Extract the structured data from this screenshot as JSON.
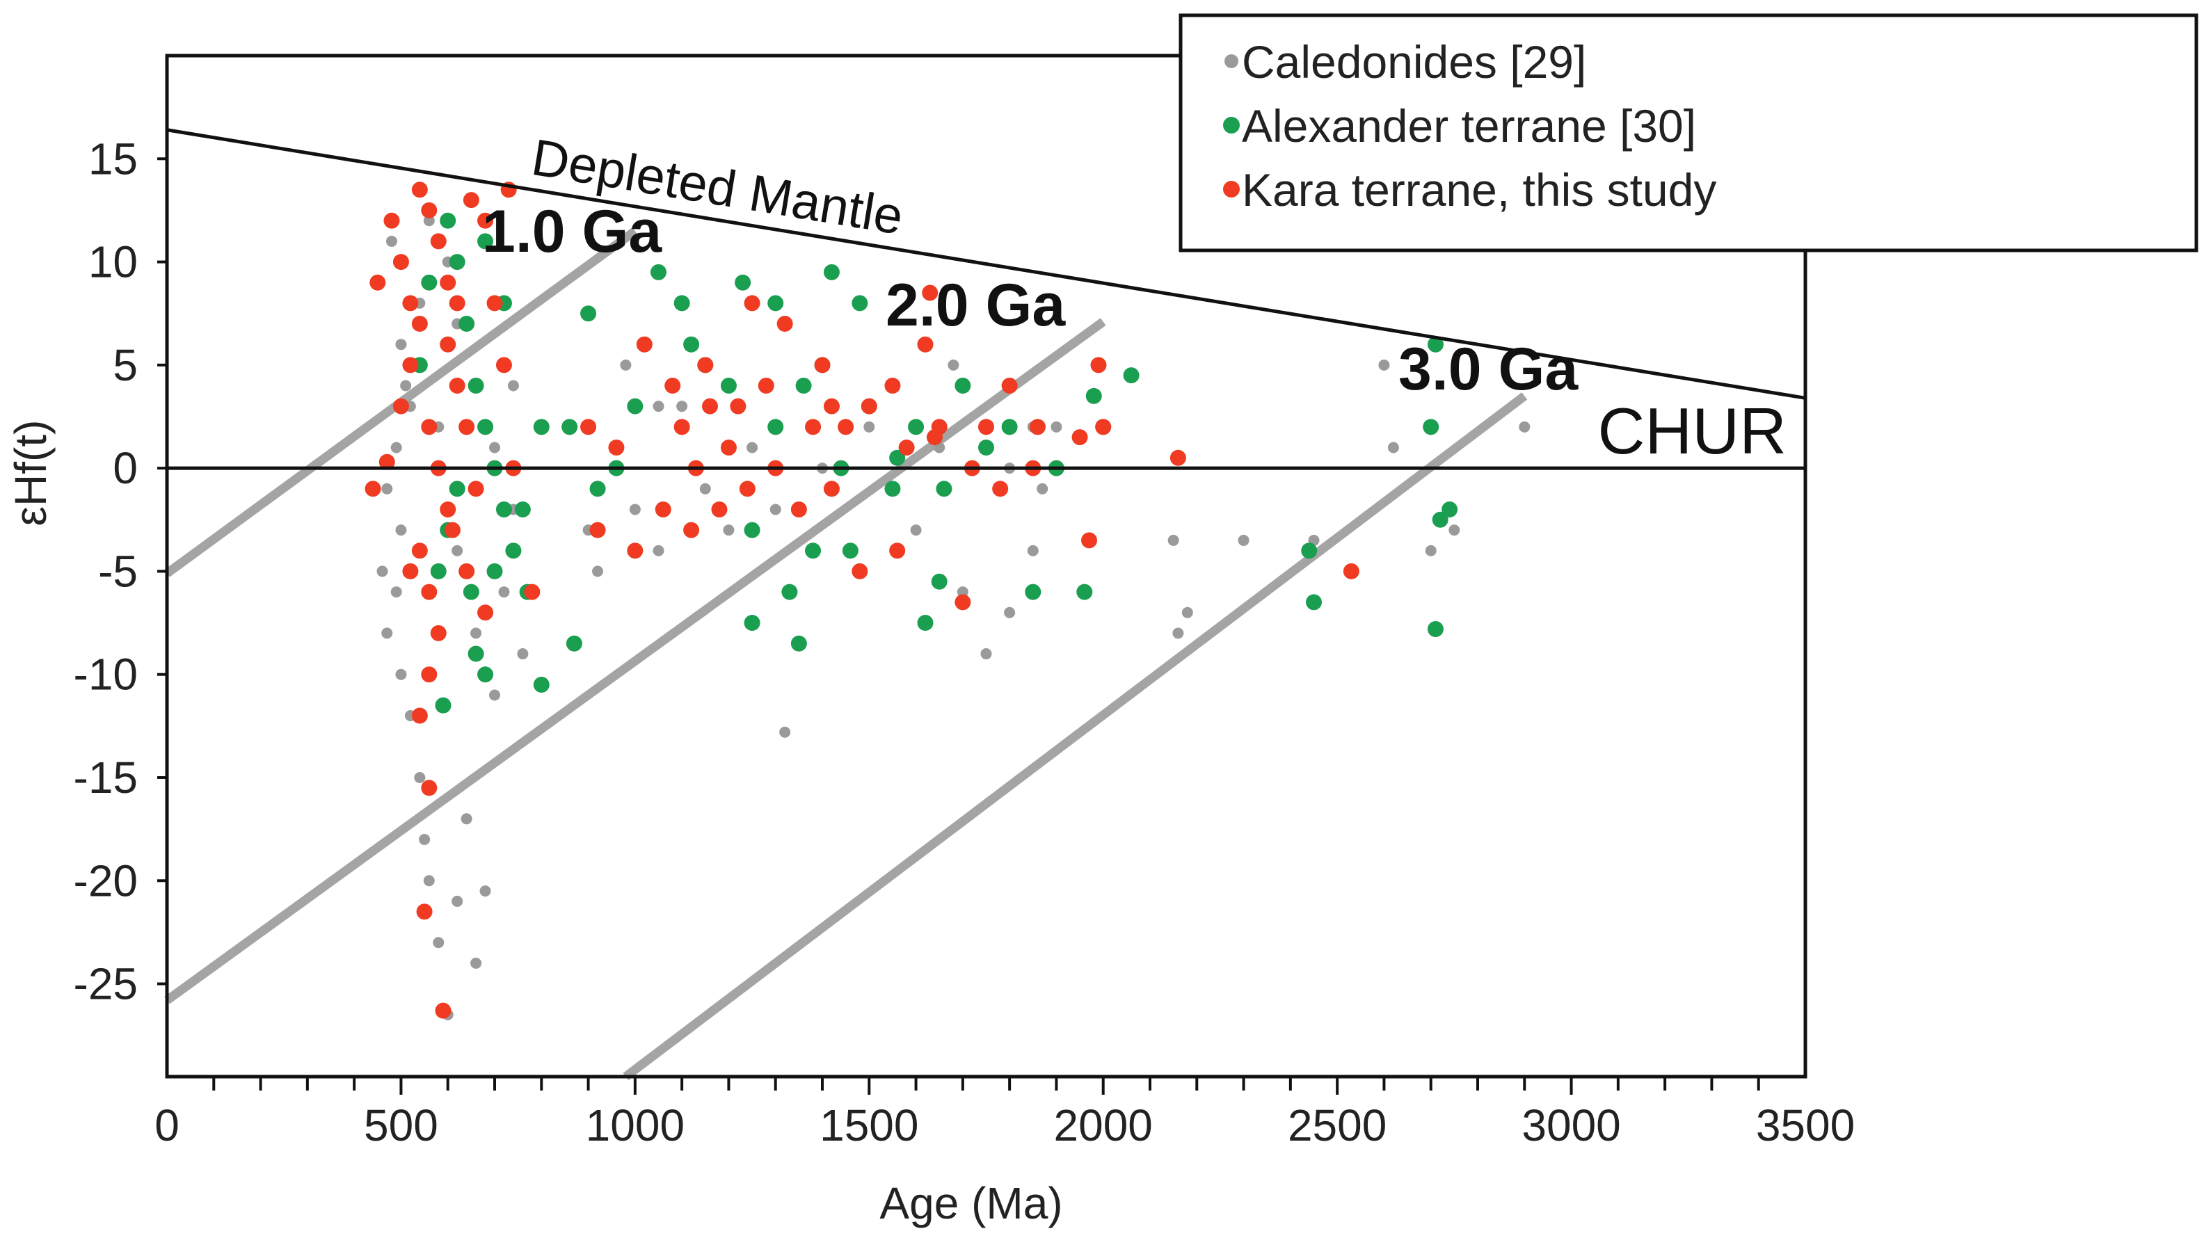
{
  "chart_data": {
    "type": "scatter",
    "xlabel": "Age (Ma)",
    "ylabel": "εHf(t)",
    "xlim": [
      0,
      3500
    ],
    "ylim": [
      -29.5,
      20
    ],
    "xticks": [
      "0",
      "500",
      "1000",
      "1500",
      "2000",
      "2500",
      "3000",
      "3500"
    ],
    "yticks": [
      "15",
      "10",
      "5",
      "0",
      "-5",
      "-10",
      "-15",
      "-20",
      "-25"
    ],
    "reference_lines": {
      "depleted_mantle": {
        "label": "Depleted Mantle",
        "from": [
          0,
          16.4
        ],
        "to": [
          3500,
          3.4
        ]
      },
      "chur": {
        "label": "CHUR",
        "y": 0
      },
      "evolution": [
        {
          "label": "1.0 Ga",
          "from": [
            0,
            -5.1
          ],
          "to": [
            1000,
            11.5
          ]
        },
        {
          "label": "2.0 Ga",
          "from": [
            0,
            -25.8
          ],
          "to": [
            2000,
            7.1
          ]
        },
        {
          "label": "3.0 Ga",
          "from": [
            980,
            -29.5
          ],
          "to": [
            2900,
            3.5
          ]
        }
      ]
    },
    "series": [
      {
        "name": "Caledonides [29]",
        "color": "#9a9a9a",
        "points": [
          [
            480,
            11
          ],
          [
            500,
            6
          ],
          [
            510,
            4
          ],
          [
            490,
            1
          ],
          [
            500,
            -3
          ],
          [
            490,
            -6
          ],
          [
            500,
            -10
          ],
          [
            520,
            -12
          ],
          [
            540,
            -15
          ],
          [
            550,
            -18
          ],
          [
            560,
            -20
          ],
          [
            580,
            -23
          ],
          [
            600,
            -26.5
          ],
          [
            620,
            -21
          ],
          [
            640,
            -17
          ],
          [
            660,
            -24
          ],
          [
            680,
            -20.5
          ],
          [
            470,
            -1
          ],
          [
            460,
            -5
          ],
          [
            470,
            -8
          ],
          [
            520,
            3
          ],
          [
            540,
            8
          ],
          [
            560,
            12
          ],
          [
            600,
            10
          ],
          [
            620,
            7
          ],
          [
            580,
            2
          ],
          [
            620,
            -4
          ],
          [
            660,
            -8
          ],
          [
            700,
            -11
          ],
          [
            720,
            -6
          ],
          [
            740,
            -2
          ],
          [
            760,
            -9
          ],
          [
            700,
            1
          ],
          [
            740,
            4
          ],
          [
            900,
            2
          ],
          [
            900,
            -3
          ],
          [
            920,
            -5
          ],
          [
            980,
            5
          ],
          [
            1000,
            -2
          ],
          [
            1050,
            -4
          ],
          [
            1100,
            3
          ],
          [
            1150,
            -1
          ],
          [
            1200,
            -3
          ],
          [
            1250,
            1
          ],
          [
            1300,
            -2
          ],
          [
            1320,
            -12.8
          ],
          [
            1400,
            0
          ],
          [
            1500,
            2
          ],
          [
            1550,
            -1
          ],
          [
            1600,
            -3
          ],
          [
            1650,
            1
          ],
          [
            1700,
            -6
          ],
          [
            1750,
            -9
          ],
          [
            1800,
            -7
          ],
          [
            1850,
            -4
          ],
          [
            1900,
            2
          ],
          [
            2150,
            -3.5
          ],
          [
            2180,
            -7
          ],
          [
            2160,
            -8
          ],
          [
            2300,
            -3.5
          ],
          [
            2450,
            -3.5
          ],
          [
            2600,
            5
          ],
          [
            2620,
            1
          ],
          [
            2700,
            -4
          ],
          [
            2750,
            -3
          ],
          [
            2900,
            2
          ],
          [
            1050,
            3
          ],
          [
            1120,
            -3
          ],
          [
            1680,
            5
          ],
          [
            1800,
            0
          ],
          [
            1850,
            2
          ],
          [
            1870,
            -1
          ]
        ]
      },
      {
        "name": "Alexander terrane [30]",
        "color": "#1a9e50",
        "points": [
          [
            600,
            12
          ],
          [
            620,
            10
          ],
          [
            640,
            7
          ],
          [
            660,
            4
          ],
          [
            680,
            2
          ],
          [
            700,
            0
          ],
          [
            720,
            -2
          ],
          [
            740,
            -4
          ],
          [
            650,
            -6
          ],
          [
            660,
            -9
          ],
          [
            680,
            -10
          ],
          [
            700,
            -5
          ],
          [
            620,
            -1
          ],
          [
            600,
            -3
          ],
          [
            580,
            -5
          ],
          [
            590,
            -11.5
          ],
          [
            760,
            -2
          ],
          [
            770,
            -6
          ],
          [
            800,
            2
          ],
          [
            800,
            -10.5
          ],
          [
            860,
            2
          ],
          [
            870,
            -8.5
          ],
          [
            900,
            7.5
          ],
          [
            920,
            -1
          ],
          [
            960,
            0
          ],
          [
            1000,
            3
          ],
          [
            1050,
            9.5
          ],
          [
            1100,
            8
          ],
          [
            1150,
            5
          ],
          [
            1200,
            4
          ],
          [
            1230,
            9
          ],
          [
            1250,
            -7.5
          ],
          [
            1250,
            -3
          ],
          [
            1300,
            2
          ],
          [
            1330,
            -6
          ],
          [
            1350,
            -8.5
          ],
          [
            1380,
            -4
          ],
          [
            1400,
            5
          ],
          [
            1420,
            9.5
          ],
          [
            1440,
            0
          ],
          [
            1460,
            -4
          ],
          [
            1480,
            8
          ],
          [
            1500,
            3
          ],
          [
            1550,
            -1
          ],
          [
            1600,
            2
          ],
          [
            1620,
            -7.5
          ],
          [
            1650,
            -5.5
          ],
          [
            1700,
            4
          ],
          [
            1750,
            1
          ],
          [
            1800,
            2
          ],
          [
            1850,
            -6
          ],
          [
            1900,
            0
          ],
          [
            1960,
            -6
          ],
          [
            1980,
            3.5
          ],
          [
            2000,
            2
          ],
          [
            2060,
            4.5
          ],
          [
            2440,
            -4
          ],
          [
            2450,
            -6.5
          ],
          [
            2700,
            2
          ],
          [
            2710,
            6
          ],
          [
            2720,
            -2.5
          ],
          [
            2710,
            -7.8
          ],
          [
            2740,
            -2
          ],
          [
            540,
            5
          ],
          [
            560,
            9
          ],
          [
            680,
            11
          ],
          [
            720,
            8
          ],
          [
            1120,
            6
          ],
          [
            1300,
            8
          ],
          [
            1360,
            4
          ],
          [
            1560,
            0.5
          ],
          [
            1660,
            -1
          ]
        ]
      },
      {
        "name": "Kara terrane, this study",
        "color": "#f03a22",
        "points": [
          [
            540,
            13.5
          ],
          [
            560,
            12.5
          ],
          [
            580,
            11
          ],
          [
            600,
            9
          ],
          [
            620,
            8
          ],
          [
            540,
            7
          ],
          [
            520,
            5
          ],
          [
            500,
            3
          ],
          [
            560,
            2
          ],
          [
            580,
            0
          ],
          [
            600,
            -2
          ],
          [
            540,
            -4
          ],
          [
            520,
            -5
          ],
          [
            560,
            -6
          ],
          [
            580,
            -8
          ],
          [
            560,
            -10
          ],
          [
            540,
            -12
          ],
          [
            560,
            -15.5
          ],
          [
            550,
            -21.5
          ],
          [
            590,
            -26.3
          ],
          [
            440,
            -1
          ],
          [
            450,
            9
          ],
          [
            470,
            0.3
          ],
          [
            650,
            13
          ],
          [
            680,
            12
          ],
          [
            700,
            8
          ],
          [
            730,
            13.5
          ],
          [
            720,
            5
          ],
          [
            740,
            0
          ],
          [
            780,
            -6
          ],
          [
            900,
            2
          ],
          [
            920,
            -3
          ],
          [
            960,
            1
          ],
          [
            1000,
            -4
          ],
          [
            1020,
            6
          ],
          [
            1060,
            -2
          ],
          [
            1080,
            4
          ],
          [
            1100,
            2
          ],
          [
            1120,
            -3
          ],
          [
            1150,
            5
          ],
          [
            1180,
            -2
          ],
          [
            1200,
            1
          ],
          [
            1220,
            3
          ],
          [
            1250,
            8
          ],
          [
            1280,
            4
          ],
          [
            1300,
            0
          ],
          [
            1320,
            7
          ],
          [
            1350,
            -2
          ],
          [
            1380,
            2
          ],
          [
            1400,
            5
          ],
          [
            1420,
            -1
          ],
          [
            1450,
            2
          ],
          [
            1480,
            -5
          ],
          [
            1500,
            3
          ],
          [
            1550,
            4
          ],
          [
            1580,
            1
          ],
          [
            1620,
            6
          ],
          [
            1630,
            8.5
          ],
          [
            1650,
            2
          ],
          [
            1700,
            -6.5
          ],
          [
            1720,
            0
          ],
          [
            1750,
            2
          ],
          [
            1780,
            -1
          ],
          [
            1800,
            4
          ],
          [
            1850,
            0
          ],
          [
            1860,
            2
          ],
          [
            1950,
            1.5
          ],
          [
            1970,
            -3.5
          ],
          [
            1990,
            5
          ],
          [
            2000,
            2
          ],
          [
            2160,
            0.5
          ],
          [
            2530,
            -5
          ],
          [
            480,
            12
          ],
          [
            500,
            10
          ],
          [
            520,
            8
          ],
          [
            600,
            6
          ],
          [
            620,
            4
          ],
          [
            640,
            2
          ],
          [
            660,
            -1
          ],
          [
            610,
            -3
          ],
          [
            640,
            -5
          ],
          [
            680,
            -7
          ],
          [
            1130,
            0
          ],
          [
            1160,
            3
          ],
          [
            1240,
            -1
          ],
          [
            1420,
            3
          ],
          [
            1560,
            -4
          ],
          [
            1640,
            1.5
          ]
        ]
      }
    ]
  },
  "legend": {
    "items": [
      {
        "label": "Caledonides [29]",
        "color": "#9a9a9a"
      },
      {
        "label": "Alexander terrane [30]",
        "color": "#1a9e50"
      },
      {
        "label": "Kara terrane, this study",
        "color": "#f03a22"
      }
    ]
  }
}
